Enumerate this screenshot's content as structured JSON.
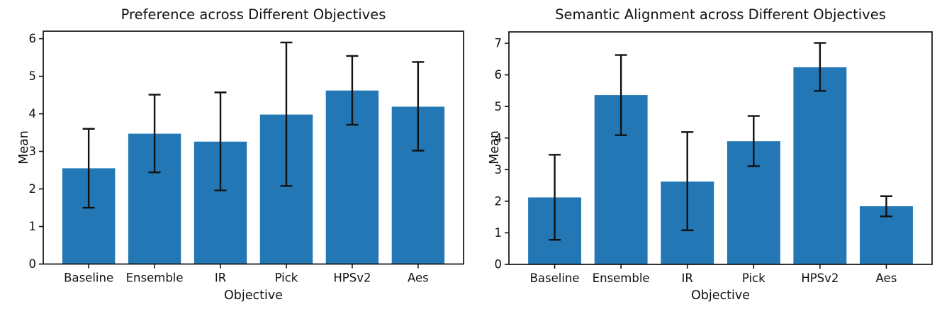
{
  "page": {
    "background": "#ffffff"
  },
  "chart_data": [
    {
      "type": "bar",
      "title": "Preference across Different Objectives",
      "xlabel": "Objective",
      "ylabel": "Mean",
      "categories": [
        "Baseline",
        "Ensemble",
        "IR",
        "Pick",
        "HPSv2",
        "Aes"
      ],
      "values": [
        2.55,
        3.47,
        3.26,
        3.98,
        4.62,
        4.19
      ],
      "error_bar_bottom": [
        1.5,
        2.44,
        1.96,
        2.08,
        3.71,
        3.02
      ],
      "error_bar_top": [
        3.6,
        4.51,
        4.57,
        5.9,
        5.54,
        5.38
      ],
      "ylim": [
        0,
        6.2
      ],
      "yticks": [
        0,
        1,
        2,
        3,
        4,
        5,
        6
      ],
      "bar_color": "#2277b4",
      "error_color": "#111111",
      "grid": false,
      "legend": null
    },
    {
      "type": "bar",
      "title": "Semantic Alignment across Different Objectives",
      "xlabel": "Objective",
      "ylabel": "Mean",
      "categories": [
        "Baseline",
        "Ensemble",
        "IR",
        "Pick",
        "HPSv2",
        "Aes"
      ],
      "values": [
        2.12,
        5.36,
        2.62,
        3.9,
        6.24,
        1.84
      ],
      "error_bar_bottom": [
        0.78,
        4.09,
        1.08,
        3.11,
        5.49,
        1.52
      ],
      "error_bar_top": [
        3.47,
        6.63,
        4.19,
        4.7,
        7.01,
        2.16
      ],
      "ylim": [
        0,
        7.36
      ],
      "yticks": [
        0,
        1,
        2,
        3,
        4,
        5,
        6,
        7
      ],
      "bar_color": "#2277b4",
      "error_color": "#111111",
      "grid": false,
      "legend": null
    }
  ]
}
